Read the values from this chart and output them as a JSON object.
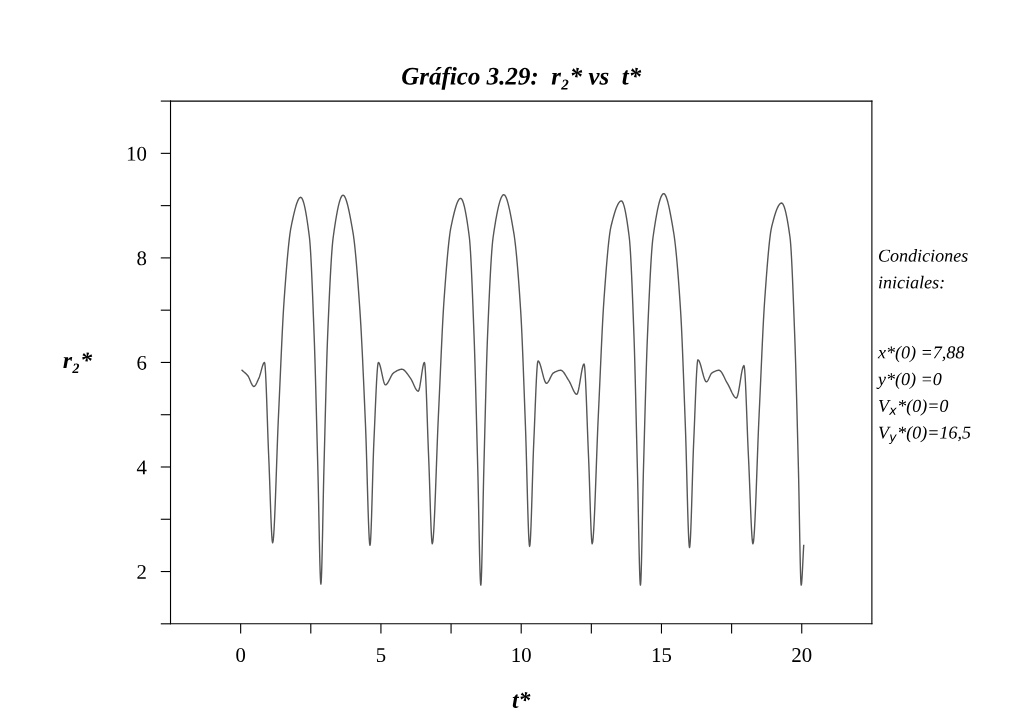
{
  "chart_data": {
    "type": "line",
    "title": "Gráfico 3.29:  r₂* vs  t*",
    "xlabel": "t*",
    "ylabel": "r₂*",
    "annotations": [
      "Condiciones",
      "iniciales:",
      "x*(0) =7,88",
      "y*(0) =0",
      "V$_{x}$*(0)=0",
      "V$_{y}$*(0)=16,5"
    ],
    "xlim": [
      -2.5,
      22.5
    ],
    "ylim": [
      1,
      11
    ],
    "xticks": [
      0,
      {
        "value": 2.5,
        "label": null
      },
      5,
      {
        "value": 7.5,
        "label": null
      },
      10,
      {
        "value": 12.5,
        "label": null
      },
      15,
      {
        "value": 17.5,
        "label": null
      },
      20
    ],
    "yticks": [
      {
        "value": 1,
        "label": null
      },
      2,
      {
        "value": 3,
        "label": null
      },
      4,
      {
        "value": 5,
        "label": null
      },
      6,
      {
        "value": 7,
        "label": null
      },
      8,
      {
        "value": 9,
        "label": null
      },
      10,
      {
        "value": 11,
        "label": null
      }
    ],
    "grid": false,
    "series": [
      {
        "color": "#555555",
        "x": [
          0.05,
          0.25,
          0.47,
          0.65,
          0.85,
          1.0,
          1.14,
          1.35,
          1.55,
          1.8,
          2.14,
          2.45,
          2.62,
          2.75,
          2.86,
          2.97,
          3.1,
          3.3,
          3.65,
          4.0,
          4.25,
          4.45,
          4.61,
          4.75,
          4.91,
          5.16,
          5.45,
          5.75,
          6.05,
          6.33,
          6.55,
          6.7,
          6.83,
          7.05,
          7.25,
          7.5,
          7.84,
          8.15,
          8.32,
          8.45,
          8.56,
          8.67,
          8.8,
          9.0,
          9.38,
          9.73,
          9.98,
          10.15,
          10.3,
          10.45,
          10.6,
          10.9,
          11.15,
          11.41,
          11.7,
          11.98,
          12.24,
          12.4,
          12.53,
          12.75,
          12.95,
          13.2,
          13.57,
          13.85,
          14.02,
          14.14,
          14.25,
          14.36,
          14.5,
          14.7,
          15.08,
          15.43,
          15.68,
          15.85,
          16.0,
          16.15,
          16.3,
          16.6,
          16.8,
          17.05,
          17.35,
          17.67,
          17.94,
          18.1,
          18.26,
          18.48,
          18.68,
          18.93,
          19.28,
          19.58,
          19.75,
          19.88,
          19.98,
          20.07
        ],
        "values": [
          5.85,
          5.75,
          5.54,
          5.7,
          6.0,
          4.2,
          2.55,
          5.0,
          7.2,
          8.6,
          9.16,
          8.4,
          6.5,
          4.0,
          1.76,
          4.0,
          6.5,
          8.4,
          9.2,
          8.5,
          7.0,
          4.8,
          2.5,
          4.5,
          6.0,
          5.57,
          5.8,
          5.87,
          5.7,
          5.45,
          6.0,
          4.2,
          2.53,
          5.0,
          7.2,
          8.6,
          9.14,
          8.4,
          6.5,
          4.0,
          1.74,
          4.0,
          6.5,
          8.4,
          9.21,
          8.5,
          7.0,
          4.8,
          2.48,
          4.5,
          6.03,
          5.6,
          5.8,
          5.85,
          5.65,
          5.39,
          5.97,
          4.2,
          2.53,
          5.0,
          7.2,
          8.6,
          9.09,
          8.4,
          6.5,
          4.0,
          1.74,
          4.0,
          6.5,
          8.4,
          9.23,
          8.5,
          7.0,
          4.8,
          2.46,
          4.5,
          6.05,
          5.63,
          5.8,
          5.85,
          5.6,
          5.32,
          5.94,
          4.2,
          2.53,
          5.0,
          7.2,
          8.6,
          9.05,
          8.4,
          6.5,
          4.0,
          1.74,
          2.5
        ]
      }
    ]
  }
}
